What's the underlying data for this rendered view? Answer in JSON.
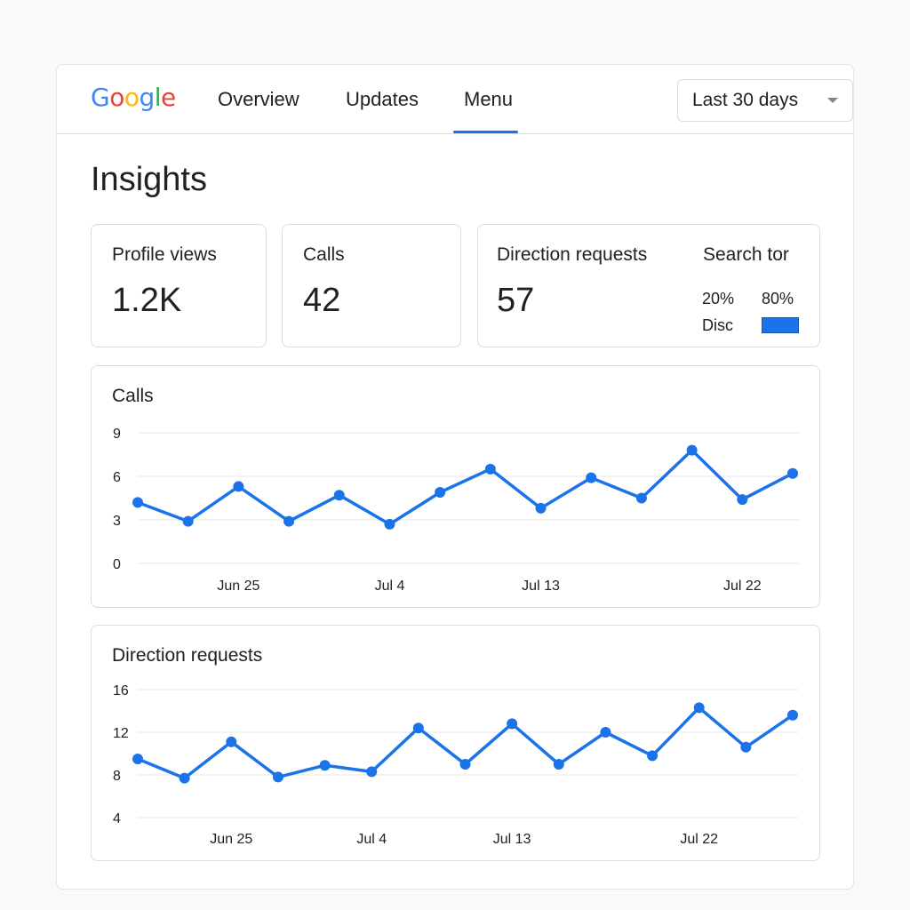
{
  "header": {
    "logo_letters": [
      {
        "ch": "G",
        "color": "#4285F4"
      },
      {
        "ch": "o",
        "color": "#EA4335"
      },
      {
        "ch": "o",
        "color": "#FBBC05"
      },
      {
        "ch": "g",
        "color": "#4285F4"
      },
      {
        "ch": "l",
        "color": "#34A853"
      },
      {
        "ch": "e",
        "color": "#EA4335"
      }
    ],
    "tabs": [
      {
        "label": "Overview"
      },
      {
        "label": "Updates"
      },
      {
        "label": "Menu"
      }
    ],
    "active_tab": "Menu",
    "date_range": "Last 30 days"
  },
  "page_title": "Insights",
  "stats": {
    "profile_views": {
      "label": "Profile views",
      "value": "1.2K"
    },
    "calls": {
      "label": "Calls",
      "value": "42"
    },
    "direction_requests": {
      "label": "Direction requests",
      "value": "57"
    },
    "search": {
      "label": "Search tor",
      "left_percent": "20%",
      "right_percent": "80%",
      "left_label": "Disc",
      "accent": "#1a73e8"
    }
  },
  "accent_color": "#1a73e8",
  "chart_data": [
    {
      "type": "line",
      "title": "Calls",
      "ylim": [
        0,
        9
      ],
      "yticks": [
        "0",
        "3",
        "6",
        "9"
      ],
      "xtick_labels": [
        "Jun 25",
        "Jul 4",
        "Jul 13",
        "Jul 22"
      ],
      "xtick_positions": [
        2,
        5,
        8,
        12
      ],
      "grid": true,
      "series": [
        {
          "values": [
            4.2,
            2.9,
            5.3,
            2.9,
            4.7,
            2.7,
            4.9,
            6.5,
            3.8,
            5.9,
            4.5,
            7.8,
            4.4,
            6.2
          ]
        }
      ]
    },
    {
      "type": "line",
      "title": "Direction requests",
      "ylim": [
        4,
        16
      ],
      "yticks": [
        "4",
        "8",
        "12",
        "16"
      ],
      "xtick_labels": [
        "Jun 25",
        "Jul 4",
        "Jul 13",
        "Jul 22"
      ],
      "xtick_positions": [
        2,
        5,
        8,
        12
      ],
      "grid": true,
      "series": [
        {
          "values": [
            9.5,
            7.7,
            11.1,
            7.8,
            8.9,
            8.3,
            12.4,
            9.0,
            12.8,
            9.0,
            12.0,
            9.8,
            14.3,
            10.6,
            13.6
          ]
        }
      ]
    }
  ]
}
